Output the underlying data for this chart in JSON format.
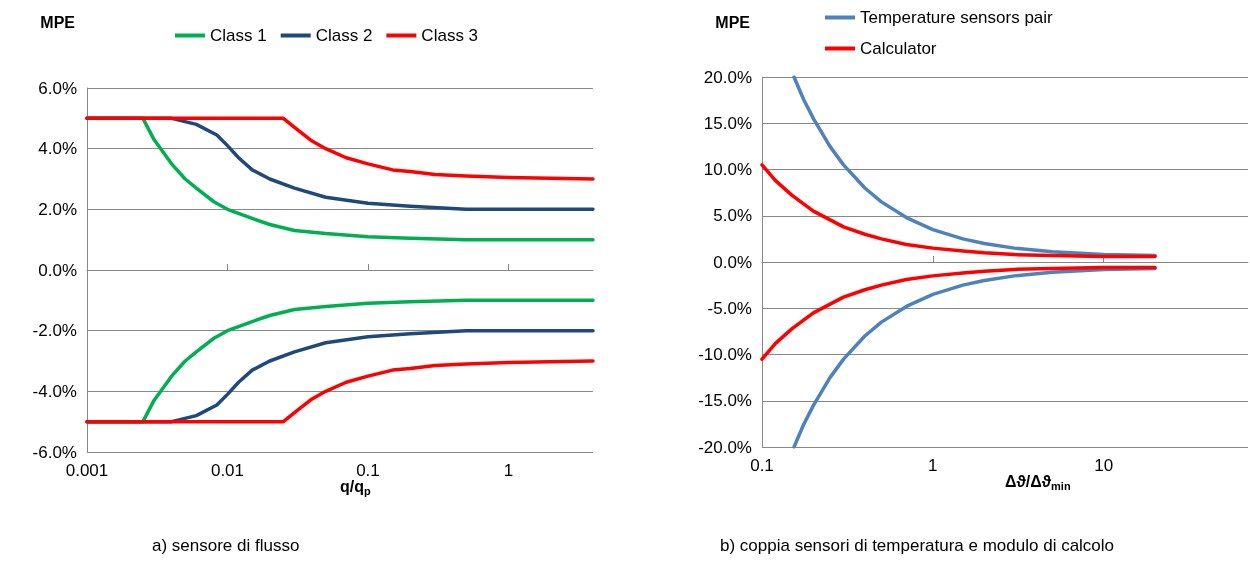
{
  "chart_data": [
    {
      "type": "line",
      "ylabel": "MPE",
      "xlabel": "q/q$_{p}$",
      "annotations": [
        "a) sensore di flusso"
      ],
      "log": "x",
      "grid": "y",
      "legend": "top",
      "marker": "none",
      "xlim": [
        0.001,
        4
      ],
      "xticks": [
        0.001,
        0.01,
        0.1,
        1
      ],
      "ylim": [
        -6,
        6
      ],
      "yticks": [
        {
          "value": -6,
          "label": "-6.0%"
        },
        {
          "value": -4,
          "label": "-4.0%"
        },
        {
          "value": -2,
          "label": "-2.0%"
        },
        {
          "value": 0,
          "label": "0.0%"
        },
        {
          "value": 2,
          "label": "2.0%"
        },
        {
          "value": 4,
          "label": "4.0%"
        },
        {
          "value": 6,
          "label": "6.0%"
        }
      ],
      "series": [
        {
          "name": "Class 1",
          "color": "#00b050",
          "x": [
            0.001,
            0.0025,
            0.003,
            0.004,
            0.005,
            0.006,
            0.008,
            0.01,
            0.015,
            0.02,
            0.03,
            0.05,
            0.1,
            0.2,
            0.5,
            1,
            4
          ],
          "values": [
            5,
            5,
            4.3,
            3.5,
            3.0,
            2.7,
            2.25,
            2.0,
            1.7,
            1.5,
            1.3,
            1.2,
            1.1,
            1.05,
            1.0,
            1.0,
            1.0
          ]
        },
        {
          "name": "Class 2",
          "color": "#1f497d",
          "x": [
            0.001,
            0.004,
            0.006,
            0.0084,
            0.01,
            0.012,
            0.015,
            0.02,
            0.03,
            0.05,
            0.1,
            0.2,
            0.5,
            1,
            4
          ],
          "values": [
            5,
            5,
            4.8,
            4.45,
            4.1,
            3.7,
            3.3,
            3.0,
            2.7,
            2.4,
            2.2,
            2.1,
            2.0,
            2.0,
            2.0
          ]
        },
        {
          "name": "Class 3",
          "color": "#ff0000",
          "x": [
            0.001,
            0.025,
            0.03,
            0.04,
            0.05,
            0.07,
            0.1,
            0.15,
            0.2,
            0.3,
            0.5,
            1,
            4
          ],
          "values": [
            5,
            5,
            4.7,
            4.25,
            4.0,
            3.7,
            3.5,
            3.3,
            3.25,
            3.15,
            3.1,
            3.05,
            3.0
          ]
        },
        {
          "color": "#00b050",
          "x": [
            0.001,
            0.0025,
            0.003,
            0.004,
            0.005,
            0.006,
            0.008,
            0.01,
            0.015,
            0.02,
            0.03,
            0.05,
            0.1,
            0.2,
            0.5,
            1,
            4
          ],
          "values": [
            -5,
            -5,
            -4.3,
            -3.5,
            -3.0,
            -2.7,
            -2.25,
            -2.0,
            -1.7,
            -1.5,
            -1.3,
            -1.2,
            -1.1,
            -1.05,
            -1.0,
            -1.0,
            -1.0
          ]
        },
        {
          "color": "#1f497d",
          "x": [
            0.001,
            0.004,
            0.006,
            0.0084,
            0.01,
            0.012,
            0.015,
            0.02,
            0.03,
            0.05,
            0.1,
            0.2,
            0.5,
            1,
            4
          ],
          "values": [
            -5,
            -5,
            -4.8,
            -4.45,
            -4.1,
            -3.7,
            -3.3,
            -3.0,
            -2.7,
            -2.4,
            -2.2,
            -2.1,
            -2.0,
            -2.0,
            -2.0
          ]
        },
        {
          "color": "#ff0000",
          "x": [
            0.001,
            0.025,
            0.03,
            0.04,
            0.05,
            0.07,
            0.1,
            0.15,
            0.2,
            0.3,
            0.5,
            1,
            4
          ],
          "values": [
            -5,
            -5,
            -4.7,
            -4.25,
            -4.0,
            -3.7,
            -3.5,
            -3.3,
            -3.25,
            -3.15,
            -3.1,
            -3.05,
            -3.0
          ]
        }
      ]
    },
    {
      "type": "line",
      "ylabel": "MPE",
      "xlabel": "Δϑ/Δϑ$_{min}$",
      "annotations": [
        "b) coppia sensori di temperatura e modulo di calcolo"
      ],
      "log": "x",
      "grid": "y",
      "legend": "top",
      "marker": "none",
      "xlim": [
        0.1,
        70
      ],
      "xticks": [
        0.1,
        1,
        10
      ],
      "ylim": [
        -20,
        20
      ],
      "yticks": [
        {
          "value": -20,
          "label": "-20.0%"
        },
        {
          "value": -15,
          "label": "-15.0%"
        },
        {
          "value": -10,
          "label": "-10.0%"
        },
        {
          "value": -5,
          "label": "-5.0%"
        },
        {
          "value": 0,
          "label": "0.0%"
        },
        {
          "value": 5,
          "label": "5.0%"
        },
        {
          "value": 10,
          "label": "10.0%"
        },
        {
          "value": 15,
          "label": "15.0%"
        },
        {
          "value": 20,
          "label": "20.0%"
        }
      ],
      "series": [
        {
          "name": "Temperature sensors pair",
          "color": "#4f81bd",
          "x": [
            0.154,
            0.175,
            0.2,
            0.25,
            0.3,
            0.4,
            0.5,
            0.7,
            1,
            1.5,
            2,
            3,
            5,
            10,
            20
          ],
          "values": [
            20,
            17.6,
            15.5,
            12.5,
            10.5,
            8,
            6.5,
            4.8,
            3.5,
            2.5,
            2,
            1.5,
            1.1,
            0.8,
            0.7
          ]
        },
        {
          "name": "Calculator",
          "color": "#ff0000",
          "x": [
            0.1,
            0.12,
            0.15,
            0.2,
            0.3,
            0.4,
            0.5,
            0.7,
            1,
            1.5,
            2,
            3,
            5,
            10,
            20
          ],
          "values": [
            10.5,
            8.8,
            7.2,
            5.5,
            3.8,
            3,
            2.5,
            1.9,
            1.5,
            1.2,
            1,
            0.8,
            0.7,
            0.6,
            0.6
          ]
        },
        {
          "color": "#4f81bd",
          "x": [
            0.154,
            0.175,
            0.2,
            0.25,
            0.3,
            0.4,
            0.5,
            0.7,
            1,
            1.5,
            2,
            3,
            5,
            10,
            20
          ],
          "values": [
            -20,
            -17.6,
            -15.5,
            -12.5,
            -10.5,
            -8,
            -6.5,
            -4.8,
            -3.5,
            -2.5,
            -2,
            -1.5,
            -1.1,
            -0.8,
            -0.7
          ]
        },
        {
          "color": "#ff0000",
          "x": [
            0.1,
            0.12,
            0.15,
            0.2,
            0.3,
            0.4,
            0.5,
            0.7,
            1,
            1.5,
            2,
            3,
            5,
            10,
            20
          ],
          "values": [
            -10.5,
            -8.8,
            -7.2,
            -5.5,
            -3.8,
            -3,
            -2.5,
            -1.9,
            -1.5,
            -1.2,
            -1,
            -0.8,
            -0.7,
            -0.6,
            -0.6
          ]
        }
      ]
    }
  ]
}
